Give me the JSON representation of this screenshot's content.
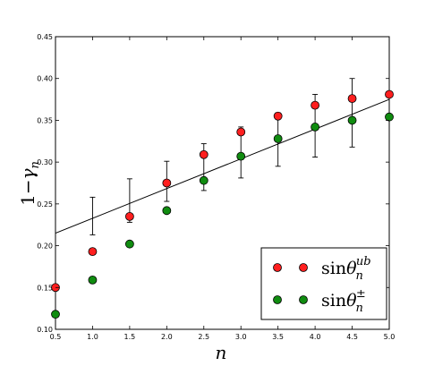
{
  "chart_data": {
    "type": "scatter",
    "xlabel": "n",
    "ylabel": "1−γ_n",
    "xlim": [
      0.5,
      5.0
    ],
    "ylim": [
      0.1,
      0.45
    ],
    "x_ticks": [
      "0.5",
      "1.0",
      "1.5",
      "2.0",
      "2.5",
      "3.0",
      "3.5",
      "4.0",
      "4.5",
      "5.0"
    ],
    "y_ticks": [
      "0.10",
      "0.15",
      "0.20",
      "0.25",
      "0.30",
      "0.35",
      "0.40",
      "0.45"
    ],
    "grid": false,
    "legend_position": "bottom-right",
    "series": [
      {
        "name": "sinθ_n^ub",
        "color": "#ff1f1f",
        "x": [
          0.5,
          1.0,
          1.5,
          2.0,
          2.5,
          3.0,
          3.5,
          4.0,
          4.5,
          5.0
        ],
        "y": [
          0.15,
          0.193,
          0.235,
          0.275,
          0.309,
          0.336,
          0.355,
          0.368,
          0.376,
          0.381
        ]
      },
      {
        "name": "sinθ_n^±",
        "color": "#108c10",
        "x": [
          0.5,
          1.0,
          1.5,
          2.0,
          2.5,
          3.0,
          3.5,
          4.0,
          4.5,
          5.0
        ],
        "y": [
          0.118,
          0.159,
          0.202,
          0.242,
          0.278,
          0.307,
          0.328,
          0.342,
          0.35,
          0.354
        ]
      }
    ],
    "error_bars": {
      "x": [
        1.0,
        1.5,
        2.0,
        2.5,
        3.0,
        3.5,
        4.0,
        4.5
      ],
      "center": [
        0.236,
        0.254,
        0.275,
        0.294,
        0.312,
        0.328,
        0.343,
        0.359
      ],
      "low": [
        0.213,
        0.228,
        0.253,
        0.266,
        0.281,
        0.295,
        0.306,
        0.318
      ],
      "high": [
        0.258,
        0.28,
        0.301,
        0.322,
        0.342,
        0.359,
        0.381,
        0.4
      ]
    },
    "fit_line": {
      "x": [
        0.5,
        5.0
      ],
      "y": [
        0.215,
        0.375
      ],
      "color": "#000000"
    }
  }
}
